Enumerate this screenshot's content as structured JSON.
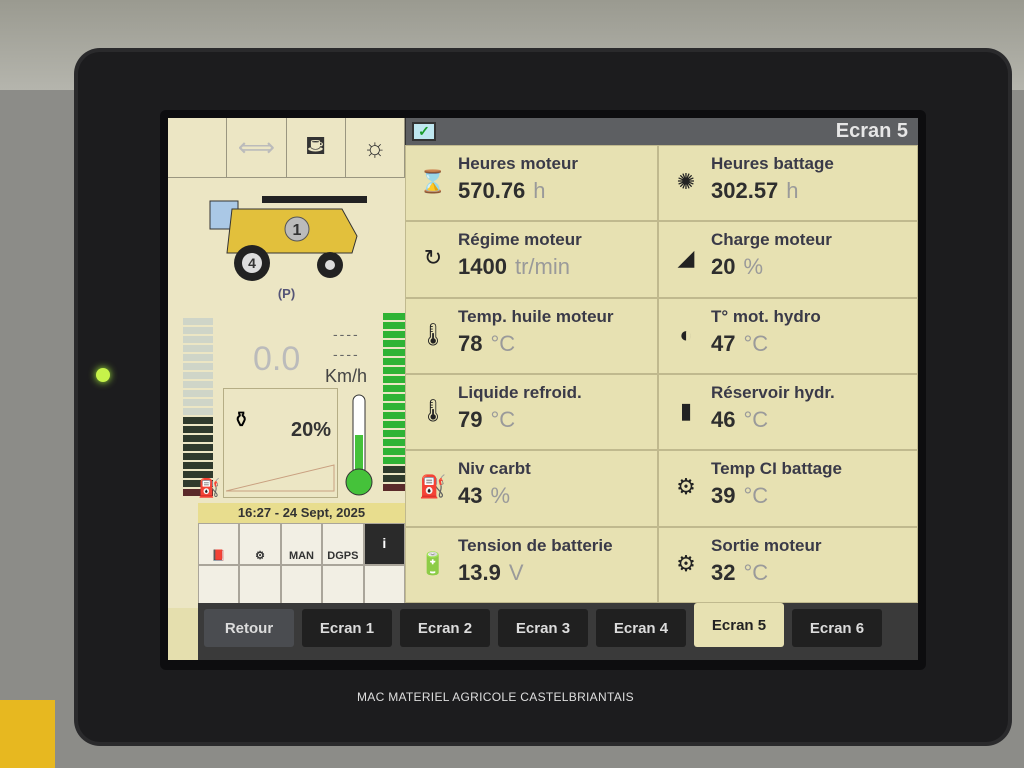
{
  "header": {
    "title": "Ecran 5"
  },
  "left_panel": {
    "speed": "0.0",
    "speed_unit": "Km/h",
    "speed_dashes_1": "----",
    "speed_dashes_2": "----",
    "engine_load": "20%",
    "datetime": "16:27 - 24 Sept, 2025",
    "combine_gear": "4",
    "combine_badge": "1",
    "parking": "(P)",
    "mode_label": "MAN",
    "gps_label": "DGPS",
    "info_button": "i"
  },
  "metrics": [
    {
      "label": "Heures moteur",
      "value": "570.76",
      "unit": "h",
      "icon": "engine-hourglass-icon"
    },
    {
      "label": "Heures battage",
      "value": "302.57",
      "unit": "h",
      "icon": "threshing-hourglass-icon"
    },
    {
      "label": "Régime moteur",
      "value": "1400",
      "unit": "tr/min",
      "icon": "engine-rpm-icon"
    },
    {
      "label": "Charge moteur",
      "value": "20",
      "unit": "%",
      "icon": "engine-load-icon"
    },
    {
      "label": "Temp. huile moteur",
      "value": "78",
      "unit": "°C",
      "icon": "oil-temp-icon"
    },
    {
      "label": "T° mot. hydro",
      "value": "47",
      "unit": "°C",
      "icon": "hydro-motor-temp-icon"
    },
    {
      "label": "Liquide refroid.",
      "value": "79",
      "unit": "°C",
      "icon": "coolant-temp-icon"
    },
    {
      "label": "Réservoir hydr.",
      "value": "46",
      "unit": "°C",
      "icon": "hydraulic-tank-icon"
    },
    {
      "label": "Niv carbt",
      "value": "43",
      "unit": "%",
      "icon": "fuel-icon"
    },
    {
      "label": "Temp CI battage",
      "value": "39",
      "unit": "°C",
      "icon": "threshing-temp-icon"
    },
    {
      "label": "Tension de batterie",
      "value": "13.9",
      "unit": "V",
      "icon": "battery-icon"
    },
    {
      "label": "Sortie moteur",
      "value": "32",
      "unit": "°C",
      "icon": "engine-output-icon"
    }
  ],
  "tabs": [
    "Retour",
    "Ecran 1",
    "Ecran 2",
    "Ecran 3",
    "Ecran 4",
    "Ecran 5",
    "Ecran 6"
  ],
  "active_tab": "Ecran 5",
  "watermark": "MAC MATERIEL AGRICOLE CASTELBRIANTAIS",
  "colors": {
    "screen_bg": "#e7e1b2",
    "header_bg": "#5d5f62",
    "bar_green": "#2fb335",
    "tab_bg": "#202020"
  }
}
